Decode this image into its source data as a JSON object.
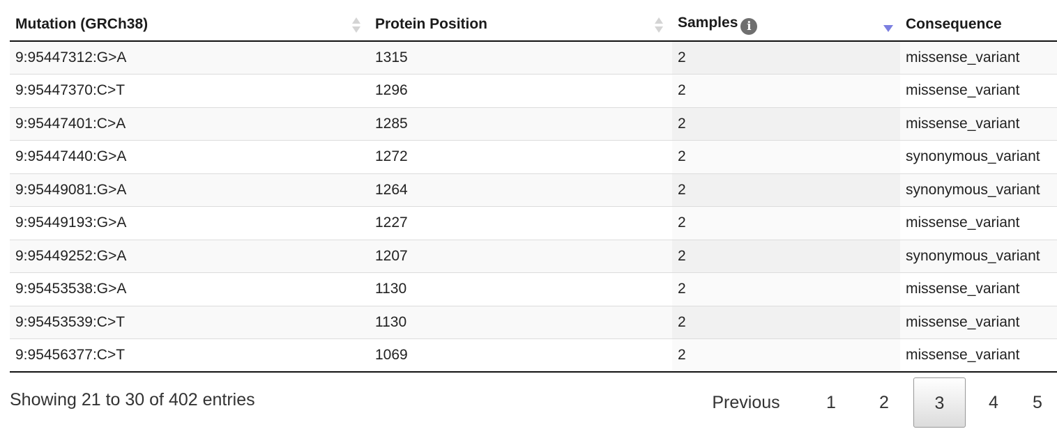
{
  "table": {
    "headers": {
      "mutation": "Mutation (GRCh38)",
      "protein_position": "Protein Position",
      "samples": "Samples",
      "consequence": "Consequence"
    },
    "samples_info_icon": "info-icon",
    "sort": {
      "column": "samples",
      "direction": "descending",
      "indicator_color": "#7b7fe0"
    },
    "rows": [
      {
        "mutation": "9:95447312:G>A",
        "protein_position": "1315",
        "samples": "2",
        "consequence": "missense_variant"
      },
      {
        "mutation": "9:95447370:C>T",
        "protein_position": "1296",
        "samples": "2",
        "consequence": "missense_variant"
      },
      {
        "mutation": "9:95447401:C>A",
        "protein_position": "1285",
        "samples": "2",
        "consequence": "missense_variant"
      },
      {
        "mutation": "9:95447440:G>A",
        "protein_position": "1272",
        "samples": "2",
        "consequence": "synonymous_variant"
      },
      {
        "mutation": "9:95449081:G>A",
        "protein_position": "1264",
        "samples": "2",
        "consequence": "synonymous_variant"
      },
      {
        "mutation": "9:95449193:G>A",
        "protein_position": "1227",
        "samples": "2",
        "consequence": "missense_variant"
      },
      {
        "mutation": "9:95449252:G>A",
        "protein_position": "1207",
        "samples": "2",
        "consequence": "synonymous_variant"
      },
      {
        "mutation": "9:95453538:G>A",
        "protein_position": "1130",
        "samples": "2",
        "consequence": "missense_variant"
      },
      {
        "mutation": "9:95453539:C>T",
        "protein_position": "1130",
        "samples": "2",
        "consequence": "missense_variant"
      },
      {
        "mutation": "9:95456377:C>T",
        "protein_position": "1069",
        "samples": "2",
        "consequence": "missense_variant"
      }
    ]
  },
  "footer": {
    "info": "Showing 21 to 30 of 402 entries",
    "pagination": {
      "previous_label": "Previous",
      "pages": [
        "1",
        "2",
        "3",
        "4",
        "5"
      ],
      "current_page": "3"
    }
  }
}
